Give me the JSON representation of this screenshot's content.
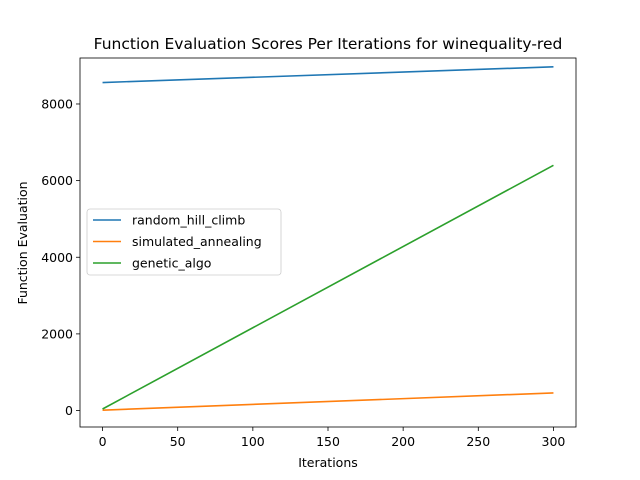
{
  "chart_data": {
    "type": "line",
    "title": "Function Evaluation Scores Per Iterations for winequality-red",
    "xlabel": "Iterations",
    "ylabel": "Function Evaluation",
    "xlim": [
      -15,
      315
    ],
    "ylim": [
      -430,
      9200
    ],
    "xticks": [
      0,
      50,
      100,
      150,
      200,
      250,
      300
    ],
    "yticks": [
      0,
      2000,
      4000,
      6000,
      8000
    ],
    "grid": false,
    "legend_position": "center-left",
    "x": [
      0,
      300
    ],
    "series": [
      {
        "name": "random_hill_climb",
        "color": "#1f77b4",
        "values": [
          8560,
          8970
        ]
      },
      {
        "name": "simulated_annealing",
        "color": "#ff7f0e",
        "values": [
          10,
          460
        ]
      },
      {
        "name": "genetic_algo",
        "color": "#2ca02c",
        "values": [
          40,
          6400
        ]
      }
    ]
  }
}
